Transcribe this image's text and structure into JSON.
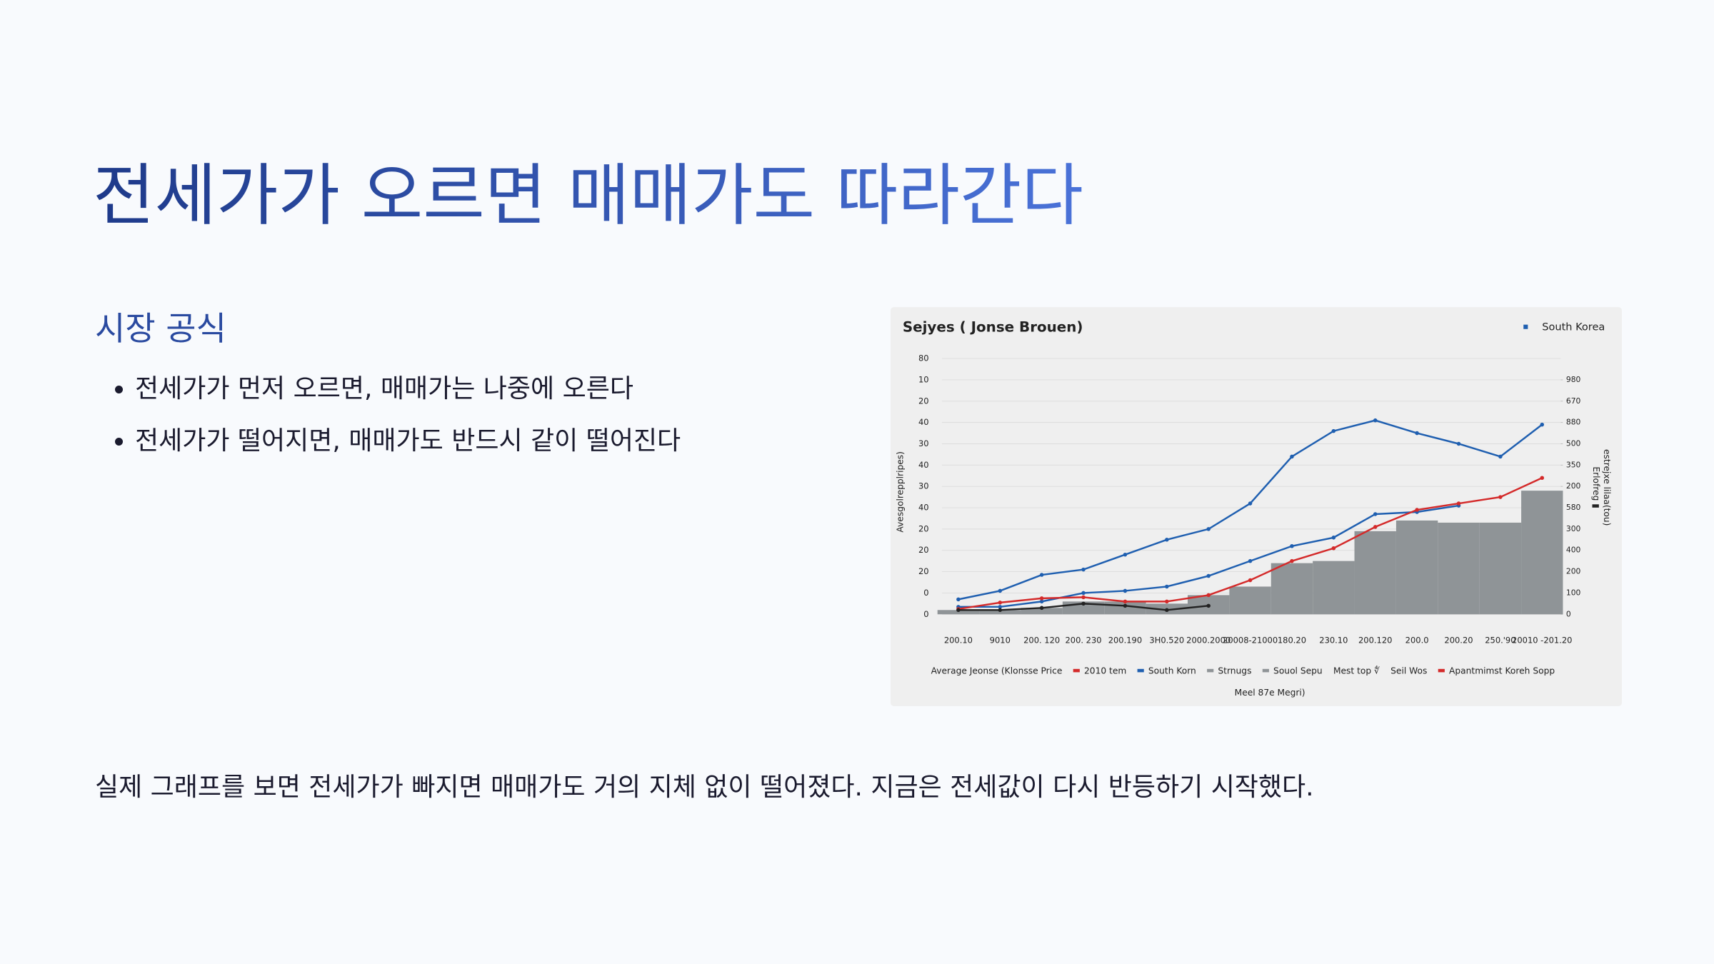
{
  "slide": {
    "title": "전세가가 오르면 매매가도 따라간다",
    "subtitle": "시장 공식",
    "bullets": [
      "전세가가 먼저 오르면, 매매가는 나중에 오른다",
      "전세가가 떨어지면, 매매가도 반드시 같이 떨어진다"
    ],
    "footer": "실제 그래프를 보면 전세가가 빠지면 매매가도 거의 지체 없이 떨어졌다. 지금은 전세값이 다시 반등하기 시작했다."
  },
  "chart_data": {
    "type": "line",
    "title": "Sejyes ( Jonse Brouen)",
    "ylabel": "Avesgolrepplripes)",
    "y2label": [
      "Erlofreg ▮",
      "estrejxe lilaa(tou)"
    ],
    "categories": [
      "200.10",
      "9010",
      "200. 120",
      "200. 230",
      "200.190",
      "3H0.520",
      "2000.2000",
      "20008-21000",
      "180.20",
      "230.10",
      "200.120",
      "200.0",
      "200.20",
      "250.'90",
      "20010 -201.20"
    ],
    "ylim": [
      0,
      12
    ],
    "yticks": [
      {
        "value": 12,
        "label": "80"
      },
      {
        "value": 11,
        "label": "10"
      },
      {
        "value": 10,
        "label": "20"
      },
      {
        "value": 9,
        "label": "40"
      },
      {
        "value": 8,
        "label": "30"
      },
      {
        "value": 7,
        "label": "40"
      },
      {
        "value": 6,
        "label": "30"
      },
      {
        "value": 5,
        "label": "40"
      },
      {
        "value": 4,
        "label": "20"
      },
      {
        "value": 3,
        "label": "20"
      },
      {
        "value": 2,
        "label": "20"
      },
      {
        "value": 1,
        "label": "0"
      },
      {
        "value": 0,
        "label": "0"
      }
    ],
    "y2lim": [
      0,
      12
    ],
    "y2ticks": [
      {
        "value": 11,
        "label": "980"
      },
      {
        "value": 10,
        "label": "670"
      },
      {
        "value": 9,
        "label": "880"
      },
      {
        "value": 8,
        "label": "500"
      },
      {
        "value": 7,
        "label": "350"
      },
      {
        "value": 6,
        "label": "200"
      },
      {
        "value": 5,
        "label": "580"
      },
      {
        "value": 4,
        "label": "300"
      },
      {
        "value": 3,
        "label": "400"
      },
      {
        "value": 2,
        "label": "200"
      },
      {
        "value": 1,
        "label": "100"
      },
      {
        "value": 0,
        "label": "0"
      }
    ],
    "grid": true,
    "bars": {
      "color": "#8f9497",
      "values": [
        0.2,
        0.2,
        0.3,
        0.6,
        0.6,
        0.5,
        0.9,
        1.3,
        2.4,
        2.5,
        3.9,
        4.4,
        4.3,
        4.3,
        5.8
      ]
    },
    "series": [
      {
        "name": "South Korea",
        "color": "#1f5fb0",
        "values": [
          0.7,
          1.1,
          1.85,
          2.1,
          2.8,
          3.5,
          4.0,
          5.2,
          7.4,
          8.6,
          9.1,
          8.5,
          8.0,
          7.4,
          8.9
        ]
      },
      {
        "color": "#1f5fb0",
        "values": [
          0.35,
          0.35,
          0.6,
          1.0,
          1.1,
          1.3,
          1.8,
          2.5,
          3.2,
          3.6,
          4.7,
          4.8,
          5.1,
          null,
          null
        ]
      },
      {
        "color": "#d42a2a",
        "values": [
          0.25,
          0.55,
          0.75,
          0.8,
          0.6,
          0.6,
          0.9,
          1.6,
          2.5,
          3.1,
          4.1,
          4.9,
          5.2,
          5.5,
          6.4
        ]
      },
      {
        "color": "#222222",
        "values": [
          0.2,
          0.2,
          0.3,
          0.5,
          0.4,
          0.2,
          0.4,
          null,
          null,
          null,
          null,
          null,
          null,
          null,
          null
        ]
      }
    ],
    "legend": "top-right",
    "bottom_legend": [
      {
        "label": "Average Jeonse (Klonsse Price"
      },
      {
        "label": "2010 tem",
        "color": "#d42a2a"
      },
      {
        "label": "South Korn",
        "color": "#1f5fb0"
      },
      {
        "label": "Strnugs",
        "color": "#8f9497"
      },
      {
        "label": "Souol Sepu",
        "color": "#8f9497"
      },
      {
        "label": "Mest top ∜"
      },
      {
        "label": "Seil Wos"
      },
      {
        "label": "Apantmimst Koreh Sopp",
        "color": "#d42a2a"
      }
    ],
    "legend_note": "Meel 87e Megri)"
  }
}
